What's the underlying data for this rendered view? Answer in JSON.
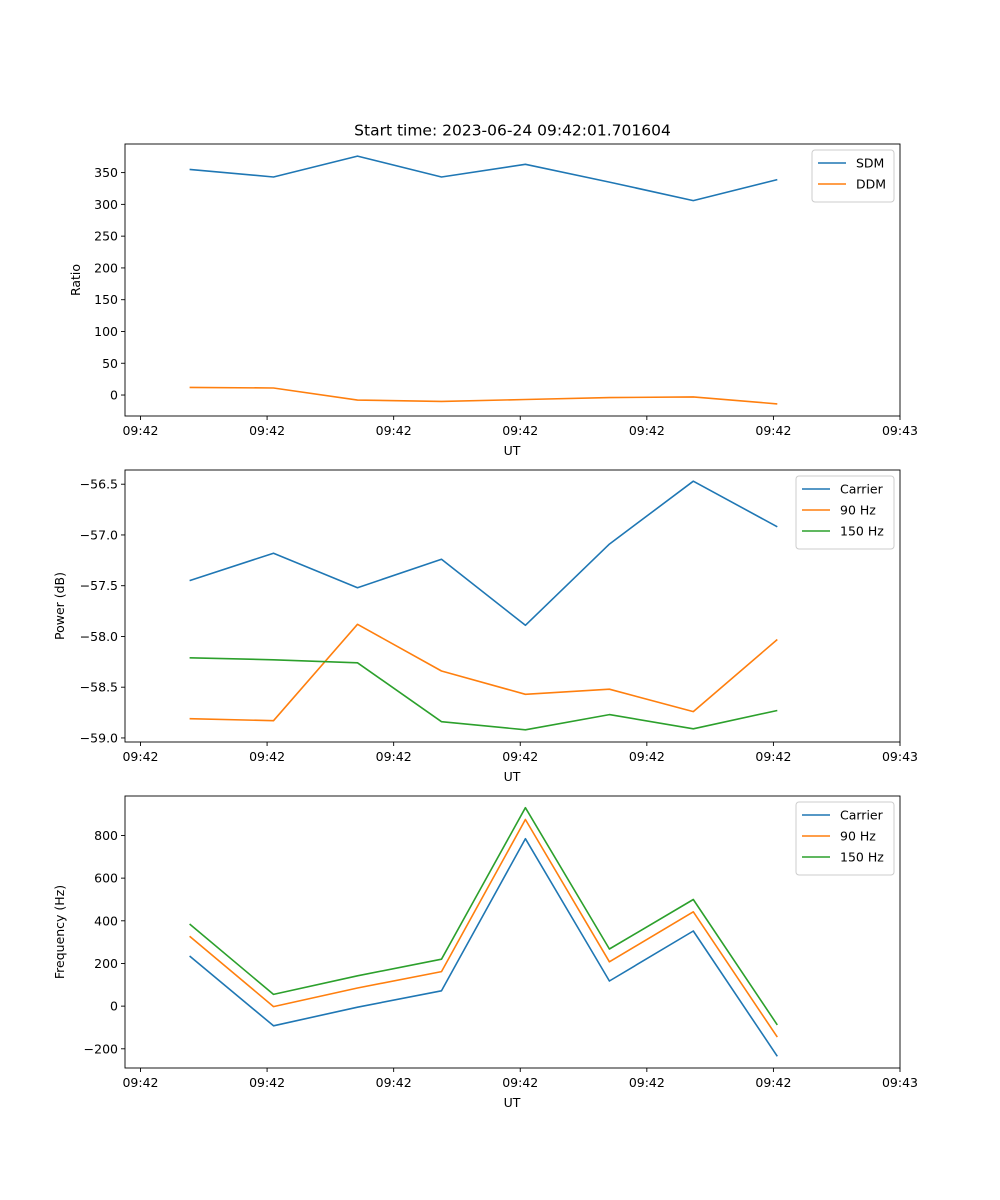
{
  "figure": {
    "title": "Start time: 2023-06-24 09:42:01.701604"
  },
  "chart_data": [
    {
      "type": "line",
      "title": "Start time: 2023-06-24 09:42:01.701604",
      "xlabel": "UT",
      "ylabel": "Ratio",
      "x_ticks": [
        "09:42",
        "09:42",
        "09:42",
        "09:42",
        "09:42",
        "09:42",
        "09:43"
      ],
      "x": [
        0.5,
        1.15,
        1.8,
        2.45,
        3.1,
        3.75,
        4.4,
        5.05
      ],
      "xlim": [
        0,
        6
      ],
      "ylim": [
        -33,
        395
      ],
      "y_ticks": [
        0,
        50,
        100,
        150,
        200,
        250,
        300,
        350
      ],
      "y_tick_labels": [
        "0",
        "50",
        "100",
        "150",
        "200",
        "250",
        "300",
        "350"
      ],
      "legend": "top-right",
      "series": [
        {
          "name": "SDM",
          "color": "#1f77b4",
          "values": [
            355,
            343,
            376,
            343,
            363,
            335,
            306,
            339
          ]
        },
        {
          "name": "DDM",
          "color": "#ff7f0e",
          "values": [
            12,
            11,
            -8,
            -10,
            -7,
            -4,
            -3,
            -14
          ]
        }
      ]
    },
    {
      "type": "line",
      "xlabel": "UT",
      "ylabel": "Power (dB)",
      "x_ticks": [
        "09:42",
        "09:42",
        "09:42",
        "09:42",
        "09:42",
        "09:42",
        "09:43"
      ],
      "x": [
        0.5,
        1.15,
        1.8,
        2.45,
        3.1,
        3.75,
        4.4,
        5.05
      ],
      "xlim": [
        0,
        6
      ],
      "ylim": [
        -59.04,
        -56.36
      ],
      "y_ticks": [
        -59.0,
        -58.5,
        -58.0,
        -57.5,
        -57.0,
        -56.5
      ],
      "y_tick_labels": [
        "−59.0",
        "−58.5",
        "−58.0",
        "−57.5",
        "−57.0",
        "−56.5"
      ],
      "legend": "top-right",
      "series": [
        {
          "name": "Carrier",
          "color": "#1f77b4",
          "values": [
            -57.45,
            -57.18,
            -57.52,
            -57.24,
            -57.89,
            -57.09,
            -56.47,
            -56.92
          ]
        },
        {
          "name": "90 Hz",
          "color": "#ff7f0e",
          "values": [
            -58.81,
            -58.83,
            -57.88,
            -58.34,
            -58.57,
            -58.52,
            -58.74,
            -58.03
          ]
        },
        {
          "name": "150 Hz",
          "color": "#2ca02c",
          "values": [
            -58.21,
            -58.23,
            -58.26,
            -58.84,
            -58.92,
            -58.77,
            -58.91,
            -58.73
          ]
        }
      ]
    },
    {
      "type": "line",
      "xlabel": "UT",
      "ylabel": "Frequency (Hz)",
      "x_ticks": [
        "09:42",
        "09:42",
        "09:42",
        "09:42",
        "09:42",
        "09:42",
        "09:43"
      ],
      "x": [
        0.5,
        1.15,
        1.8,
        2.45,
        3.1,
        3.75,
        4.4,
        5.05
      ],
      "xlim": [
        0,
        6
      ],
      "ylim": [
        -290,
        985
      ],
      "y_ticks": [
        -200,
        0,
        200,
        400,
        600,
        800
      ],
      "y_tick_labels": [
        "−200",
        "0",
        "200",
        "400",
        "600",
        "800"
      ],
      "legend": "top-right",
      "series": [
        {
          "name": "Carrier",
          "color": "#1f77b4",
          "values": [
            235,
            -92,
            -5,
            72,
            785,
            118,
            352,
            -235
          ]
        },
        {
          "name": "90 Hz",
          "color": "#ff7f0e",
          "values": [
            328,
            -2,
            85,
            162,
            875,
            208,
            442,
            -145
          ]
        },
        {
          "name": "150 Hz",
          "color": "#2ca02c",
          "values": [
            385,
            55,
            142,
            220,
            930,
            268,
            500,
            -88
          ]
        }
      ]
    }
  ]
}
